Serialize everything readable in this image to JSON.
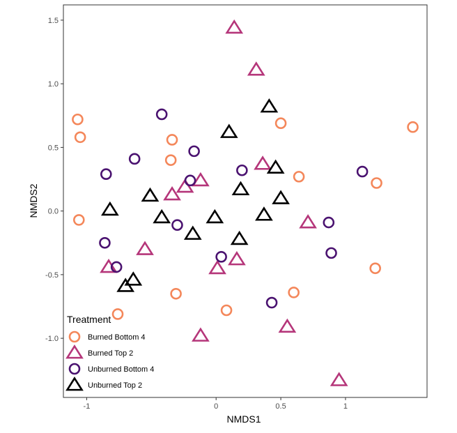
{
  "chart_data": {
    "type": "scatter",
    "title": "",
    "xlabel": "NMDS1",
    "ylabel": "NMDS2",
    "xlim": [
      -1.18,
      1.63
    ],
    "ylim": [
      -1.465,
      1.62
    ],
    "xticks": [
      -1,
      0,
      0.5,
      1
    ],
    "xtick_labels": [
      "-1",
      "0",
      "0.5",
      "1"
    ],
    "yticks": [
      1.5,
      1.0,
      0.5,
      0.0,
      -0.5,
      -1.0
    ],
    "ytick_labels": [
      "1.5",
      "1.0",
      "0.5",
      "0.0",
      "-0.5",
      "-1.0"
    ],
    "grid": false,
    "legend": {
      "title": "Treatment",
      "position": "bottom-left",
      "entries": [
        "Burned Bottom 4",
        "Burned Top 2",
        "Unburned Bottom 4",
        "Unburned Top 2"
      ]
    },
    "series": [
      {
        "name": "Burned Bottom 4",
        "shape": "circle",
        "color": "#F4875A",
        "points": [
          [
            -1.07,
            0.72
          ],
          [
            -1.05,
            0.58
          ],
          [
            -1.06,
            -0.07
          ],
          [
            -0.34,
            0.56
          ],
          [
            -0.35,
            0.4
          ],
          [
            0.5,
            0.69
          ],
          [
            0.64,
            0.27
          ],
          [
            1.52,
            0.66
          ],
          [
            1.24,
            0.22
          ],
          [
            1.23,
            -0.45
          ],
          [
            -0.76,
            -0.81
          ],
          [
            -0.31,
            -0.65
          ],
          [
            0.08,
            -0.78
          ],
          [
            0.6,
            -0.64
          ]
        ]
      },
      {
        "name": "Burned Top 2",
        "shape": "triangle",
        "color": "#B5367A",
        "points": [
          [
            0.14,
            1.44
          ],
          [
            0.31,
            1.11
          ],
          [
            0.36,
            0.37
          ],
          [
            -0.34,
            0.13
          ],
          [
            -0.24,
            0.19
          ],
          [
            -0.12,
            0.24
          ],
          [
            0.71,
            -0.09
          ],
          [
            -0.55,
            -0.3
          ],
          [
            -0.83,
            -0.44
          ],
          [
            0.01,
            -0.45
          ],
          [
            0.16,
            -0.38
          ],
          [
            -0.12,
            -0.98
          ],
          [
            0.55,
            -0.91
          ],
          [
            0.95,
            -1.33
          ]
        ]
      },
      {
        "name": "Unburned Bottom 4",
        "shape": "circle",
        "color": "#4A1270",
        "points": [
          [
            -0.42,
            0.76
          ],
          [
            -0.63,
            0.41
          ],
          [
            -0.17,
            0.47
          ],
          [
            -0.85,
            0.29
          ],
          [
            -0.2,
            0.24
          ],
          [
            0.2,
            0.32
          ],
          [
            1.13,
            0.31
          ],
          [
            -0.3,
            -0.11
          ],
          [
            -0.86,
            -0.25
          ],
          [
            -0.77,
            -0.44
          ],
          [
            0.04,
            -0.36
          ],
          [
            0.87,
            -0.09
          ],
          [
            0.89,
            -0.33
          ],
          [
            0.43,
            -0.72
          ]
        ]
      },
      {
        "name": "Unburned Top 2",
        "shape": "triangle",
        "color": "#000000",
        "points": [
          [
            0.41,
            0.82
          ],
          [
            0.1,
            0.62
          ],
          [
            0.46,
            0.34
          ],
          [
            0.19,
            0.17
          ],
          [
            -0.51,
            0.12
          ],
          [
            -0.82,
            0.01
          ],
          [
            -0.42,
            -0.05
          ],
          [
            -0.01,
            -0.05
          ],
          [
            -0.18,
            -0.18
          ],
          [
            0.18,
            -0.22
          ],
          [
            0.37,
            -0.03
          ],
          [
            0.5,
            0.1
          ],
          [
            -0.7,
            -0.59
          ],
          [
            -0.64,
            -0.54
          ]
        ]
      }
    ]
  }
}
